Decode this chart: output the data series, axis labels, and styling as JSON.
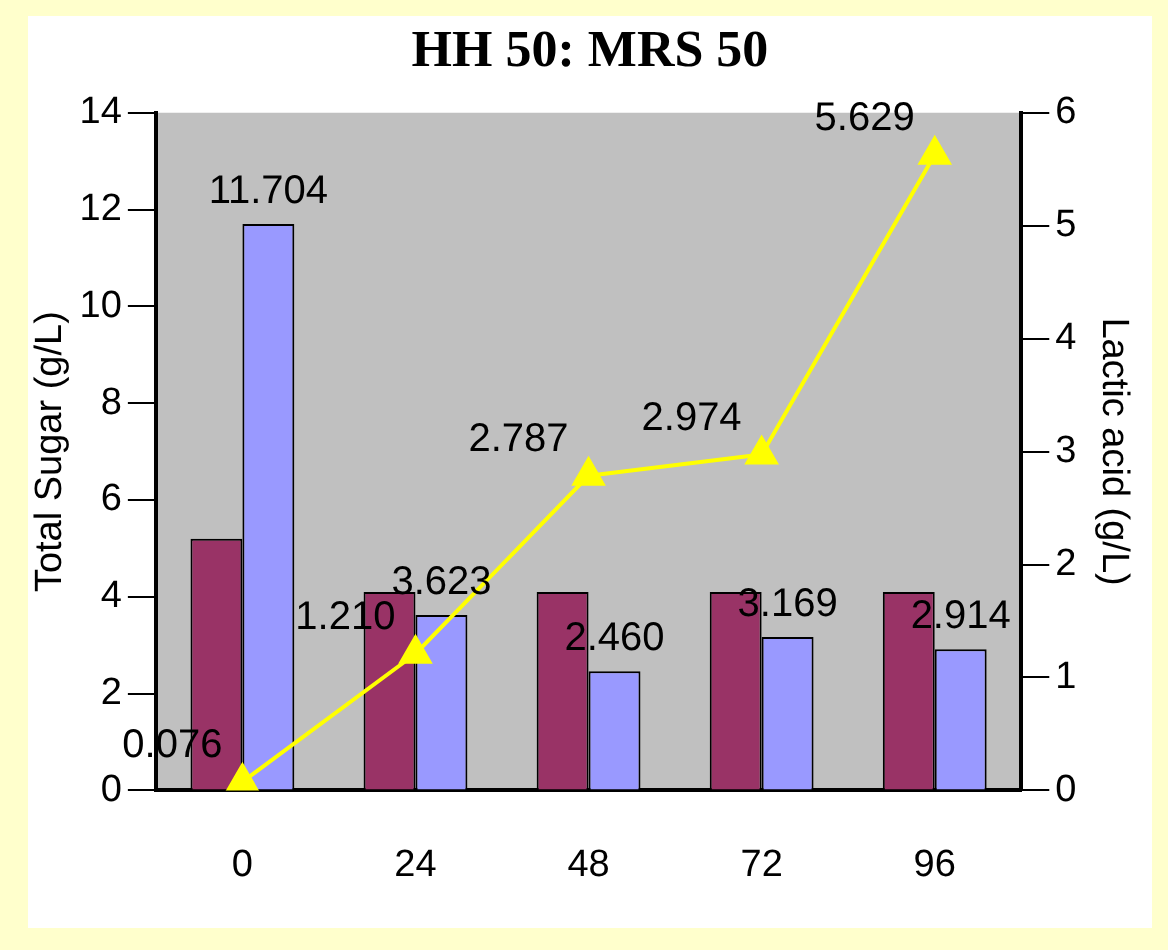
{
  "chart_data": {
    "type": "bar",
    "title": "HH 50: MRS 50",
    "ylabel": "Total Sugar (g/L)",
    "y2label": "Lactic acid (g/L)",
    "categories": [
      "0",
      "24",
      "48",
      "72",
      "96"
    ],
    "series": [
      {
        "color": "#993366",
        "values": [
          5.2,
          4.1,
          4.1,
          4.1,
          4.1
        ]
      },
      {
        "color": "#9999ff",
        "values": [
          11.704,
          3.623,
          2.46,
          3.169,
          2.914
        ],
        "value_labels": [
          "11.704",
          "3.623",
          "2.460",
          "3.169",
          "2.914"
        ]
      },
      {
        "type": "line",
        "axis": "y2",
        "color": "#ffff00",
        "marker": "triangle",
        "values": [
          0.076,
          1.21,
          2.787,
          2.974,
          5.629
        ],
        "value_labels": [
          "0.076",
          "1.210",
          "2.787",
          "2.974",
          "5.629"
        ]
      }
    ],
    "ylim": [
      0,
      14
    ],
    "yticks": [
      0,
      2,
      4,
      6,
      8,
      10,
      12,
      14
    ],
    "y2lim": [
      0,
      6
    ],
    "y2ticks": [
      0,
      1,
      2,
      3,
      4,
      5,
      6
    ],
    "grid": false,
    "legend": false
  }
}
